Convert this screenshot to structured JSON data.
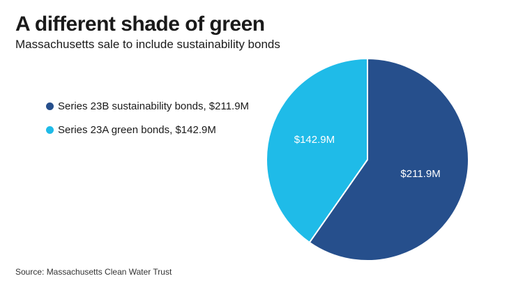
{
  "chart_data": {
    "type": "pie",
    "title": "A different shade of green",
    "subtitle": "Massachusetts sale to include sustainability bonds",
    "slices": [
      {
        "legend": "Series 23B sustainability bonds, $211.9M",
        "label": "$211.9M",
        "value": 211.9,
        "color": "#264f8c"
      },
      {
        "legend": "Series 23A green bonds, $142.9M",
        "label": "$142.9M",
        "value": 142.9,
        "color": "#1fbbe8"
      }
    ],
    "legend_position": "left",
    "source": "Source: Massachusetts Clean Water Trust"
  }
}
